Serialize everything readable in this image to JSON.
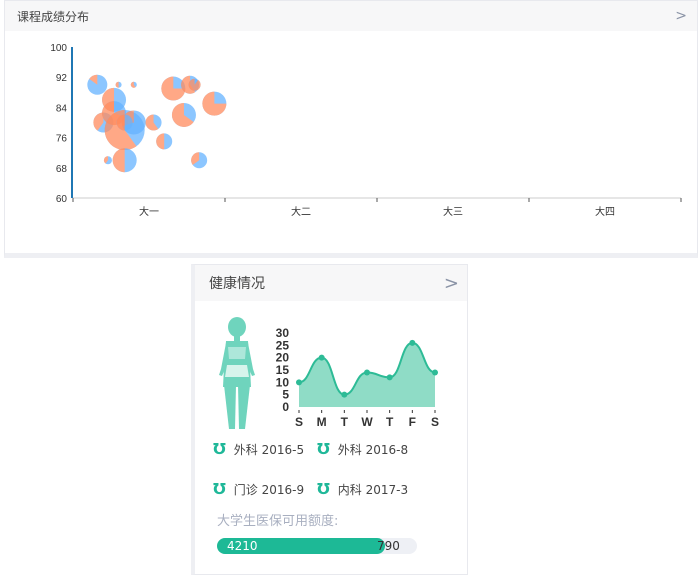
{
  "grades_panel": {
    "title": "课程成绩分布",
    "more_icon": "chevron-right-icon"
  },
  "health_panel": {
    "title": "健康情况",
    "more_icon": "chevron-right-icon",
    "figure_icon": "female-body-icon",
    "records": [
      {
        "icon": "stethoscope-icon",
        "label": "外科 2016-5"
      },
      {
        "icon": "stethoscope-icon",
        "label": "外科 2016-8"
      },
      {
        "icon": "stethoscope-icon",
        "label": "门诊 2016-9"
      },
      {
        "icon": "stethoscope-icon",
        "label": "内科 2017-3"
      }
    ],
    "insurance_label": "大学生医保可用额度:",
    "insurance_used": "4210",
    "insurance_remaining": "790",
    "insurance_fraction": 0.842
  },
  "chart_data": [
    {
      "type": "scatter",
      "subtype": "bubble-pie",
      "categories": [
        "大一",
        "大二",
        "大三",
        "大四"
      ],
      "yticks": [
        60,
        68,
        76,
        84,
        92,
        100
      ],
      "ylim": [
        60,
        100
      ],
      "colors": {
        "a": "#ff8c5e",
        "b": "#66b3ff",
        "axis": "#1f77b4"
      },
      "points": [
        {
          "x": 0.16,
          "y": 90,
          "size": 10,
          "share_a": 0.15
        },
        {
          "x": 0.3,
          "y": 90,
          "size": 3,
          "share_a": 0.5
        },
        {
          "x": 0.4,
          "y": 90,
          "size": 3,
          "share_a": 0.6
        },
        {
          "x": 0.27,
          "y": 86,
          "size": 12,
          "share_a": 0.5
        },
        {
          "x": 0.2,
          "y": 80,
          "size": 10,
          "share_a": 0.4
        },
        {
          "x": 0.27,
          "y": 82.5,
          "size": 12,
          "share_a": 0.7
        },
        {
          "x": 0.34,
          "y": 78,
          "size": 20,
          "share_a": 0.6
        },
        {
          "x": 0.4,
          "y": 80,
          "size": 12,
          "share_a": 0.3
        },
        {
          "x": 0.34,
          "y": 80,
          "size": 8,
          "share_a": 0.5
        },
        {
          "x": 0.53,
          "y": 80,
          "size": 8,
          "share_a": 0.6
        },
        {
          "x": 0.6,
          "y": 75,
          "size": 8,
          "share_a": 0.5
        },
        {
          "x": 0.23,
          "y": 70,
          "size": 4,
          "share_a": 0.4
        },
        {
          "x": 0.34,
          "y": 70,
          "size": 12,
          "share_a": 0.5
        },
        {
          "x": 0.66,
          "y": 89,
          "size": 12,
          "share_a": 0.75
        },
        {
          "x": 0.77,
          "y": 90,
          "size": 9,
          "share_a": 0.6
        },
        {
          "x": 0.8,
          "y": 90,
          "size": 6,
          "share_a": 0.9
        },
        {
          "x": 0.73,
          "y": 82,
          "size": 12,
          "share_a": 0.65
        },
        {
          "x": 0.93,
          "y": 85,
          "size": 12,
          "share_a": 0.75
        },
        {
          "x": 0.83,
          "y": 70,
          "size": 8,
          "share_a": 0.35
        }
      ]
    },
    {
      "type": "area",
      "categories": [
        "S",
        "M",
        "T",
        "W",
        "T",
        "F",
        "S"
      ],
      "values": [
        10,
        20,
        5,
        14,
        12,
        26,
        14
      ],
      "yticks": [
        0,
        5,
        10,
        15,
        20,
        25,
        30
      ],
      "ylim": [
        0,
        30
      ],
      "colors": {
        "line": "#2dbb96",
        "fill": "#8fdcc6"
      }
    }
  ]
}
